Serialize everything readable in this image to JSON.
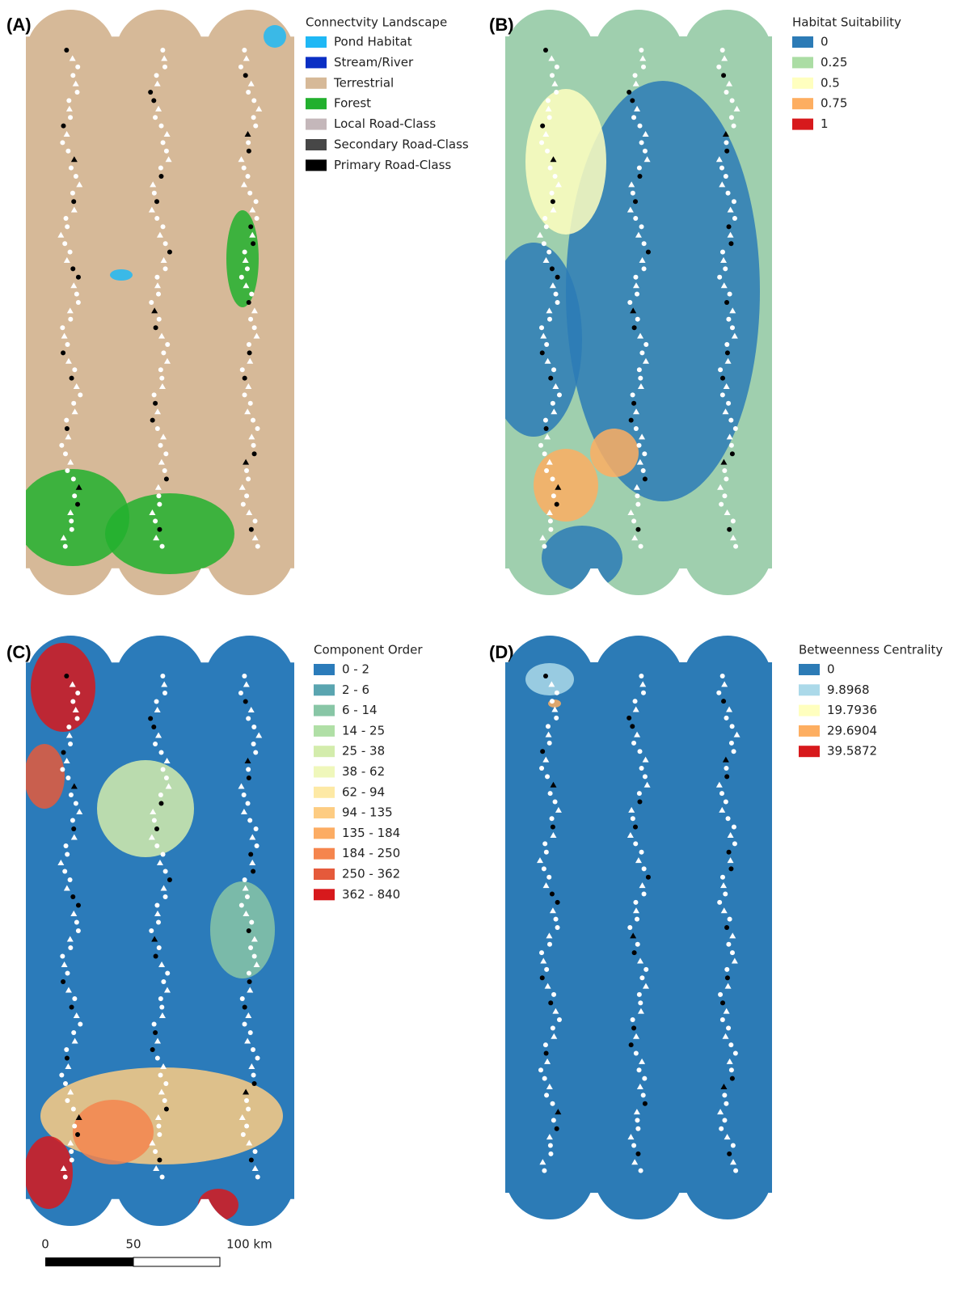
{
  "panels": [
    {
      "label": "(A)",
      "legend_title": "Connectvity Landscape",
      "items": [
        {
          "label": "Pond Habitat",
          "color": "#1fb8f5"
        },
        {
          "label": "Stream/River",
          "color": "#0a2fc4"
        },
        {
          "label": "Terrestrial",
          "color": "#d6b998"
        },
        {
          "label": "Forest",
          "color": "#22b02e"
        },
        {
          "label": "Local Road-Class",
          "color": "#c4b7ba"
        },
        {
          "label": "Secondary Road-Class",
          "color": "#474747"
        },
        {
          "label": "Primary Road-Class",
          "color": "#000000"
        }
      ]
    },
    {
      "label": "(B)",
      "legend_title": "Habitat Suitability",
      "items": [
        {
          "label": "0",
          "color": "#2c7bb6"
        },
        {
          "label": "0.25",
          "color": "#abdda4"
        },
        {
          "label": "0.5",
          "color": "#ffffbf"
        },
        {
          "label": "0.75",
          "color": "#fdae61"
        },
        {
          "label": "1",
          "color": "#d7191c"
        }
      ]
    },
    {
      "label": "(C)",
      "legend_title": "Component Order",
      "items": [
        {
          "label": "0 - 2",
          "color": "#2b7bba"
        },
        {
          "label": "2 - 6",
          "color": "#5aa5b0"
        },
        {
          "label": "6 - 14",
          "color": "#88c6a6"
        },
        {
          "label": "14 - 25",
          "color": "#b0dfa6"
        },
        {
          "label": "25 - 38",
          "color": "#d3ecac"
        },
        {
          "label": "38 - 62",
          "color": "#eff7bb"
        },
        {
          "label": "62 - 94",
          "color": "#fde9a5"
        },
        {
          "label": "94 - 135",
          "color": "#fdcc82"
        },
        {
          "label": "135 - 184",
          "color": "#fcac63"
        },
        {
          "label": "184 - 250",
          "color": "#f5854d"
        },
        {
          "label": "250 - 362",
          "color": "#e55a3b"
        },
        {
          "label": "362 - 840",
          "color": "#d7191c"
        }
      ]
    },
    {
      "label": "(D)",
      "legend_title": "Betweenness Centrality",
      "items": [
        {
          "label": "0",
          "color": "#2c7bb6"
        },
        {
          "label": "9.8968",
          "color": "#abd9e9"
        },
        {
          "label": "19.7936",
          "color": "#ffffbf"
        },
        {
          "label": "29.6904",
          "color": "#fdae61"
        },
        {
          "label": "39.5872",
          "color": "#d7191c"
        }
      ]
    }
  ],
  "scale_bar": {
    "labels": [
      "0",
      "50",
      "100 km"
    ]
  }
}
